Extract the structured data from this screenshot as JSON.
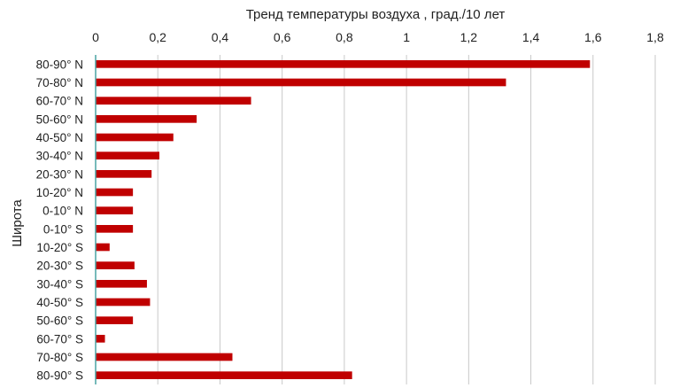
{
  "chart_data": {
    "type": "bar",
    "orientation": "horizontal",
    "title": "",
    "xlabel": "Тренд температуры воздуха , град./10 лет",
    "ylabel": "Широта",
    "xlim": [
      0,
      1.8
    ],
    "xticks": [
      "0",
      "0,2",
      "0,4",
      "0,6",
      "0,8",
      "1",
      "1,2",
      "1,4",
      "1,6",
      "1,8"
    ],
    "x_axis_position": "top",
    "grid": "vertical",
    "bar_color": "#c00000",
    "categories": [
      "80-90° N",
      "70-80° N",
      "60-70° N",
      "50-60° N",
      "40-50° N",
      "30-40° N",
      "20-30° N",
      "10-20° N",
      "0-10° N",
      "0-10° S",
      "10-20° S",
      "20-30° S",
      "30-40° S",
      "40-50° S",
      "50-60° S",
      "60-70° S",
      "70-80° S",
      "80-90° S"
    ],
    "values": [
      1.59,
      1.32,
      0.5,
      0.325,
      0.25,
      0.205,
      0.18,
      0.12,
      0.12,
      0.12,
      0.045,
      0.125,
      0.165,
      0.175,
      0.12,
      0.03,
      0.44,
      0.825
    ]
  }
}
